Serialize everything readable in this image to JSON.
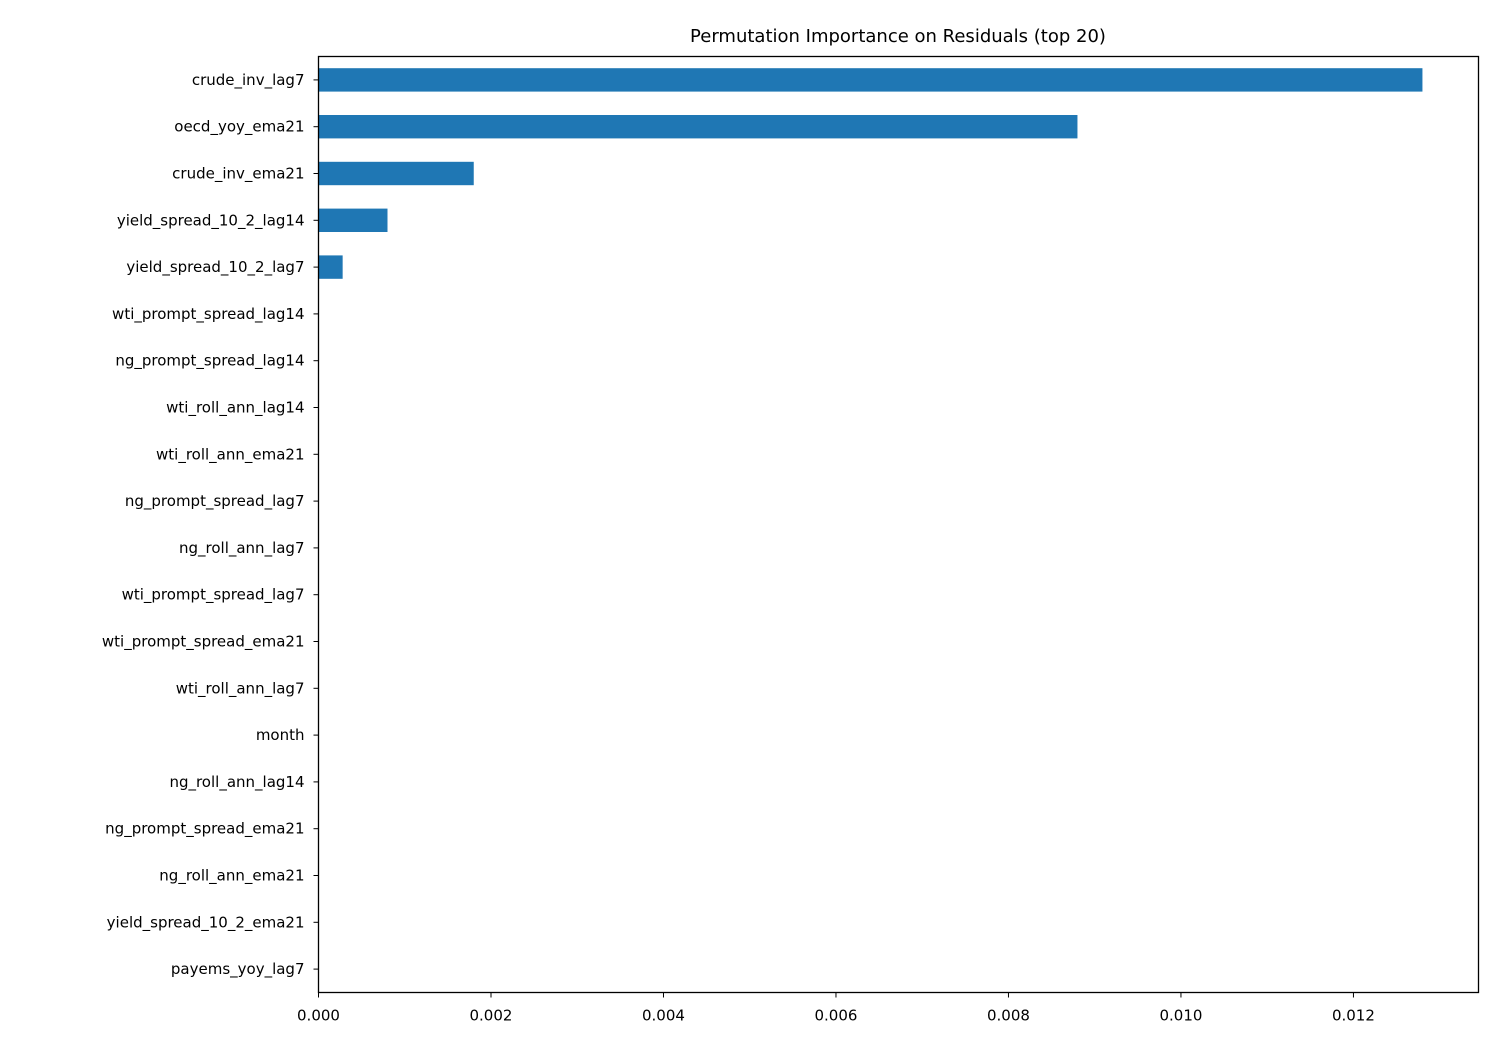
{
  "chart_data": {
    "type": "bar",
    "orientation": "horizontal",
    "title": "Permutation Importance on Residuals (top 20)",
    "xlabel": "",
    "ylabel": "",
    "categories": [
      "crude_inv_lag7",
      "oecd_yoy_ema21",
      "crude_inv_ema21",
      "yield_spread_10_2_lag14",
      "yield_spread_10_2_lag7",
      "wti_prompt_spread_lag14",
      "ng_prompt_spread_lag14",
      "wti_roll_ann_lag14",
      "wti_roll_ann_ema21",
      "ng_prompt_spread_lag7",
      "ng_roll_ann_lag7",
      "wti_prompt_spread_lag7",
      "wti_prompt_spread_ema21",
      "wti_roll_ann_lag7",
      "month",
      "ng_roll_ann_lag14",
      "ng_prompt_spread_ema21",
      "ng_roll_ann_ema21",
      "yield_spread_10_2_ema21",
      "payems_yoy_lag7"
    ],
    "values": [
      0.0128,
      0.0088,
      0.0018,
      0.0008,
      0.00028,
      0,
      0,
      0,
      0,
      0,
      0,
      0,
      0,
      0,
      0,
      0,
      0,
      0,
      0,
      0
    ],
    "xlim": [
      0,
      0.01345
    ],
    "xticks": [
      0,
      0.002,
      0.004,
      0.006,
      0.008,
      0.01,
      0.012
    ],
    "xtick_labels": [
      "0.000",
      "0.002",
      "0.004",
      "0.006",
      "0.008",
      "0.010",
      "0.012"
    ],
    "bar_color": "#1f77b4",
    "grid": false,
    "legend": "none"
  }
}
